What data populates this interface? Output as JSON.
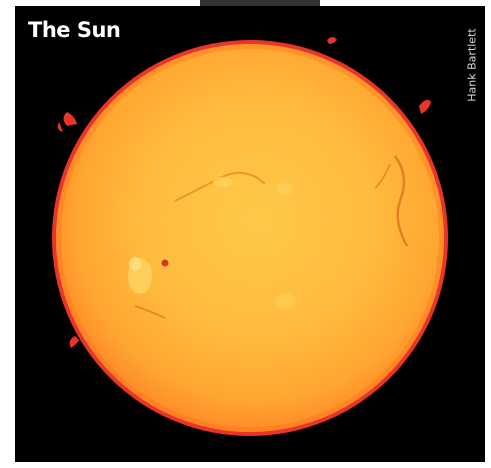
{
  "image": {
    "title": "The Sun",
    "credit": "Hank Bartlett",
    "subject": "sun",
    "colors": {
      "background": "#000000",
      "page": "#ffffff",
      "sun_core": "#ffbb33",
      "sun_edge": "#ff8a1a",
      "limb": "#e8342a",
      "title_text": "#ffffff",
      "credit_text": "#d8d8d8"
    }
  }
}
